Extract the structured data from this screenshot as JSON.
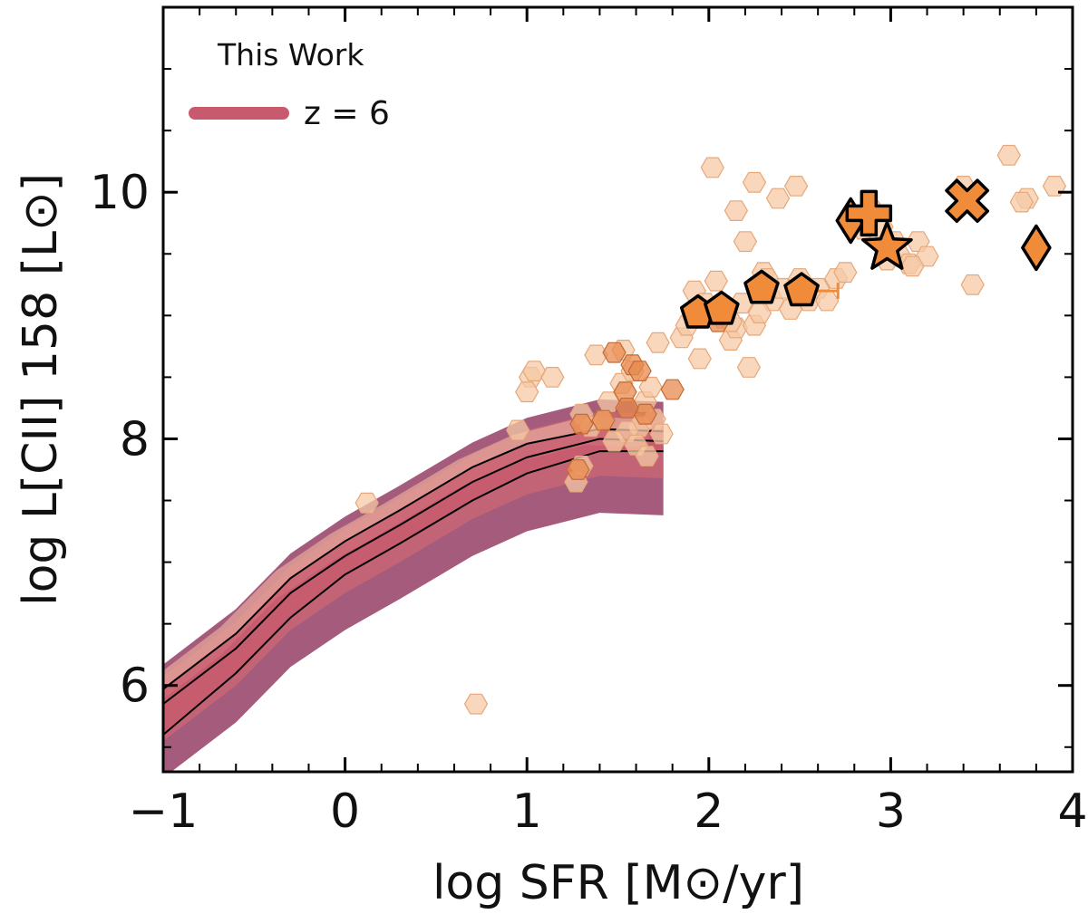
{
  "chart_data": {
    "type": "scatter",
    "title": "",
    "xlabel": "log SFR [M⊙/yr]",
    "ylabel": "log L[CII] 158 [L⊙]",
    "xlim": [
      -1,
      4
    ],
    "ylim": [
      5.3,
      11.5
    ],
    "xticks": [
      -1,
      0,
      1,
      2,
      3,
      4
    ],
    "xtick_labels": [
      "−1",
      "0",
      "1",
      "2",
      "3",
      "4"
    ],
    "yticks": [
      6,
      8,
      10
    ],
    "ytick_labels": [
      "6",
      "8",
      "10"
    ],
    "legend": {
      "placement": "top-left",
      "title": "This Work",
      "entries": [
        {
          "label": "z = 6",
          "color": "#c85a6e"
        }
      ]
    },
    "colors": {
      "band": "#c85a6e",
      "density_outer": "#9b4a6e",
      "density_mid": "#c56575",
      "density_inner": "#e4a69a",
      "median_line": "#000000",
      "obs_light": "#f6c9a6",
      "obs_medium": "#e88a4e",
      "obs_strong": "#f08b3a",
      "outline": "#000000"
    },
    "simulation": {
      "median": {
        "x": [
          -1.0,
          -0.6,
          -0.3,
          0.0,
          0.3,
          0.7,
          1.0,
          1.4,
          1.75
        ],
        "y": [
          5.85,
          6.3,
          6.75,
          7.05,
          7.3,
          7.65,
          7.85,
          8.0,
          7.98
        ]
      },
      "band_upper": [
        5.97,
        6.42,
        6.87,
        7.17,
        7.42,
        7.77,
        7.96,
        8.08,
        8.06
      ],
      "band_lower": [
        5.6,
        6.1,
        6.55,
        6.9,
        7.15,
        7.5,
        7.72,
        7.9,
        7.9
      ]
    },
    "series": [
      {
        "marker": "hexagon",
        "style": "faint",
        "points": [
          [
            1.02,
            8.5
          ],
          [
            1.04,
            8.55
          ],
          [
            1.14,
            8.5
          ],
          [
            1.3,
            8.2
          ],
          [
            1.35,
            8.1
          ],
          [
            1.38,
            8.68
          ],
          [
            1.45,
            8.3
          ],
          [
            1.52,
            8.45
          ],
          [
            1.58,
            8.55
          ],
          [
            1.62,
            8.1
          ],
          [
            1.65,
            8.3
          ],
          [
            1.68,
            8.42
          ],
          [
            1.7,
            8.16
          ],
          [
            1.55,
            8.06
          ],
          [
            1.42,
            8.15
          ],
          [
            1.48,
            7.98
          ],
          [
            1.6,
            7.95
          ],
          [
            1.66,
            7.86
          ],
          [
            1.74,
            8.04
          ],
          [
            1.53,
            8.72
          ],
          [
            1.0,
            8.38
          ],
          [
            0.95,
            8.07
          ],
          [
            0.12,
            7.48
          ],
          [
            1.27,
            7.65
          ],
          [
            1.3,
            7.78
          ],
          [
            1.85,
            8.82
          ],
          [
            1.88,
            8.92
          ],
          [
            1.92,
            9.2
          ],
          [
            1.98,
            9.1
          ],
          [
            2.04,
            9.28
          ],
          [
            2.08,
            8.98
          ],
          [
            2.12,
            8.8
          ],
          [
            2.15,
            8.9
          ],
          [
            2.18,
            9.1
          ],
          [
            2.22,
            8.58
          ],
          [
            2.25,
            8.92
          ],
          [
            2.3,
            9.35
          ],
          [
            2.35,
            9.12
          ],
          [
            2.4,
            9.22
          ],
          [
            2.45,
            9.05
          ],
          [
            2.5,
            9.3
          ],
          [
            2.55,
            9.12
          ],
          [
            2.6,
            9.22
          ],
          [
            2.65,
            9.12
          ],
          [
            2.7,
            9.3
          ],
          [
            2.2,
            9.6
          ],
          [
            2.32,
            9.3
          ],
          [
            2.15,
            9.85
          ],
          [
            2.02,
            10.2
          ],
          [
            2.48,
            10.05
          ],
          [
            2.38,
            9.95
          ],
          [
            2.25,
            10.08
          ],
          [
            2.08,
            9.05
          ],
          [
            2.28,
            9.02
          ],
          [
            2.75,
            9.35
          ],
          [
            2.85,
            9.7
          ],
          [
            2.9,
            9.85
          ],
          [
            2.95,
            9.72
          ],
          [
            3.02,
            9.6
          ],
          [
            3.05,
            9.48
          ],
          [
            3.1,
            9.42
          ],
          [
            3.15,
            9.6
          ],
          [
            3.2,
            9.48
          ],
          [
            3.4,
            10.05
          ],
          [
            3.45,
            9.25
          ],
          [
            3.65,
            10.3
          ],
          [
            3.75,
            9.95
          ],
          [
            3.72,
            9.92
          ],
          [
            3.9,
            10.05
          ],
          [
            0.72,
            5.85
          ],
          [
            1.95,
            8.65
          ],
          [
            2.12,
            8.95
          ],
          [
            3.12,
            9.4
          ],
          [
            2.98,
            9.45
          ],
          [
            1.72,
            8.78
          ]
        ]
      },
      {
        "marker": "hexagon",
        "style": "medium",
        "points": [
          [
            1.48,
            8.7
          ],
          [
            1.58,
            8.6
          ],
          [
            1.62,
            8.55
          ],
          [
            1.54,
            8.38
          ],
          [
            1.65,
            8.2
          ],
          [
            1.42,
            8.15
          ],
          [
            1.3,
            8.12
          ],
          [
            1.8,
            8.4
          ],
          [
            1.28,
            7.75
          ],
          [
            2.05,
            8.95
          ],
          [
            1.55,
            8.25
          ]
        ]
      },
      {
        "marker": "pentagon",
        "style": "highlight",
        "points": [
          [
            1.94,
            9.02
          ],
          [
            2.07,
            9.05
          ],
          [
            2.29,
            9.22
          ],
          [
            2.51,
            9.2
          ]
        ],
        "xerr_upper": [
          0.0,
          0.0,
          0.0,
          0.2
        ]
      },
      {
        "marker": "diamond",
        "style": "highlight",
        "points": [
          [
            2.78,
            9.77
          ],
          [
            3.8,
            9.55
          ]
        ]
      },
      {
        "marker": "plus",
        "style": "highlight",
        "points": [
          [
            2.88,
            9.83
          ]
        ]
      },
      {
        "marker": "star",
        "style": "highlight",
        "points": [
          [
            2.98,
            9.55
          ]
        ]
      },
      {
        "marker": "cross",
        "style": "highlight",
        "points": [
          [
            3.42,
            9.93
          ]
        ]
      }
    ]
  }
}
